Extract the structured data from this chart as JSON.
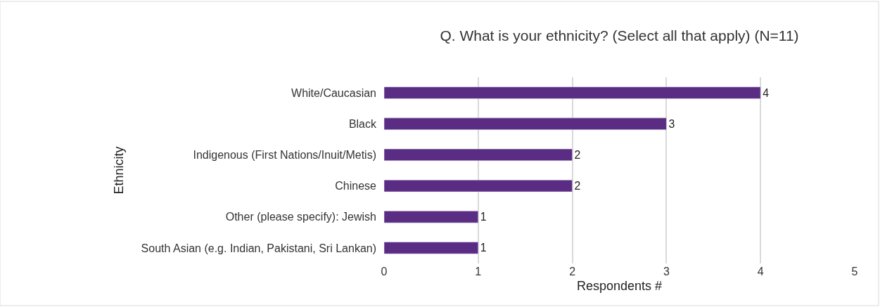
{
  "chart_data": {
    "type": "bar",
    "orientation": "horizontal",
    "title": "Q. What is your ethnicity? (Select all that apply) (N=11)",
    "xlabel": "Respondents #",
    "ylabel": "Ethnicity",
    "categories": [
      "White/Caucasian",
      "Black",
      "Indigenous (First Nations/Inuit/Metis)",
      "Chinese",
      "Other (please specify): Jewish",
      "South Asian (e.g. Indian, Pakistani, Sri Lankan)"
    ],
    "values": [
      4,
      3,
      2,
      2,
      1,
      1
    ],
    "color": "#5b2c83",
    "xlim": [
      0,
      5
    ],
    "xticks": [
      0,
      1,
      2,
      3,
      4,
      5
    ],
    "grid": "x",
    "data_labels": true,
    "legend": false
  }
}
